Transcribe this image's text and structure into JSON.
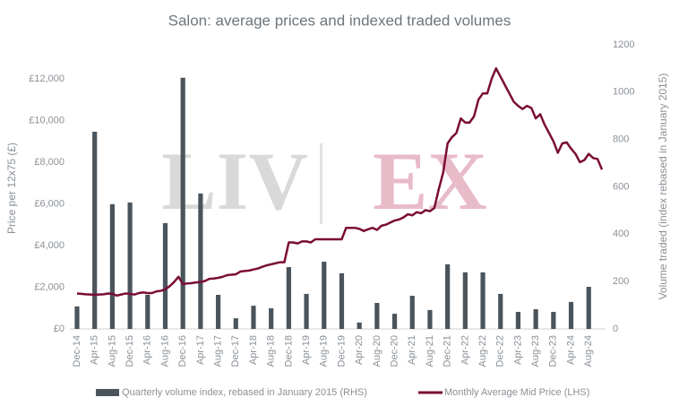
{
  "chart_data": {
    "type": "combo",
    "title": "Salon: average prices and indexed traded volumes",
    "watermark": [
      "LIV",
      "EX"
    ],
    "y_label": "Price per 12x75 (£)",
    "y2_label": "Volume traded (index rebased in January 2015)",
    "categories": [
      "Dec-14",
      null,
      null,
      null,
      "Apr-15",
      null,
      null,
      null,
      "Aug-15",
      null,
      null,
      null,
      "Dec-15",
      null,
      null,
      null,
      "Apr-16",
      null,
      null,
      null,
      "Aug-16",
      null,
      null,
      null,
      "Dec-16",
      null,
      null,
      null,
      "Apr-17",
      null,
      null,
      null,
      "Aug-17",
      null,
      null,
      null,
      "Dec-17",
      null,
      null,
      null,
      "Apr-18",
      null,
      null,
      null,
      "Aug-18",
      null,
      null,
      null,
      "Dec-18",
      null,
      null,
      null,
      "Apr-19",
      null,
      null,
      null,
      "Aug-19",
      null,
      null,
      null,
      "Dec-19",
      null,
      null,
      null,
      "Apr-20",
      null,
      null,
      null,
      "Aug-20",
      null,
      null,
      null,
      "Dec-20",
      null,
      null,
      null,
      "Apr-21",
      null,
      null,
      null,
      "Aug-21",
      null,
      null,
      null,
      "Dec-21",
      null,
      null,
      null,
      "Apr-22",
      null,
      null,
      null,
      "Aug-22",
      null,
      null,
      null,
      "Dec-22",
      null,
      null,
      null,
      "Apr-23",
      null,
      null,
      null,
      "Aug-23",
      null,
      null,
      null,
      "Dec-23",
      null,
      null,
      null,
      "Apr-24",
      null,
      null,
      null,
      "Aug-24",
      null,
      null,
      null
    ],
    "series": [
      {
        "name": "Quarterly volume index, rebased in January 2015 (RHS)",
        "type": "bar",
        "axis": "y2",
        "color": "#4a545c",
        "values": [
          95,
          null,
          null,
          null,
          833,
          null,
          null,
          null,
          527,
          null,
          null,
          null,
          534,
          null,
          null,
          null,
          144,
          null,
          null,
          null,
          447,
          null,
          null,
          null,
          1061,
          null,
          null,
          null,
          572,
          null,
          null,
          null,
          144,
          null,
          null,
          null,
          45,
          null,
          null,
          null,
          98,
          null,
          null,
          null,
          87,
          null,
          null,
          null,
          261,
          null,
          null,
          null,
          148,
          null,
          null,
          null,
          284,
          null,
          null,
          null,
          235,
          null,
          null,
          null,
          27,
          null,
          null,
          null,
          110,
          null,
          null,
          null,
          64,
          null,
          null,
          null,
          140,
          null,
          null,
          null,
          80,
          null,
          null,
          null,
          273,
          null,
          null,
          null,
          239,
          null,
          null,
          null,
          239,
          null,
          null,
          null,
          148,
          null,
          null,
          null,
          72,
          null,
          null,
          null,
          83,
          null,
          null,
          null,
          72,
          null,
          null,
          null,
          114,
          null,
          null,
          null,
          178,
          null,
          null,
          null
        ]
      },
      {
        "name": "Monthly Average Mid Price (LHS)",
        "type": "line",
        "color": "#7a0d35",
        "values": [
          1700,
          1680,
          1660,
          1650,
          1640,
          1650,
          1660,
          1700,
          1690,
          1600,
          1650,
          1700,
          1680,
          1650,
          1720,
          1750,
          1720,
          1720,
          1800,
          1830,
          1900,
          2050,
          2250,
          2500,
          2150,
          2180,
          2200,
          2230,
          2250,
          2300,
          2400,
          2420,
          2450,
          2500,
          2580,
          2600,
          2620,
          2750,
          2780,
          2800,
          2850,
          2900,
          2980,
          3050,
          3100,
          3150,
          3200,
          3200,
          4150,
          4150,
          4100,
          4200,
          4200,
          4150,
          4300,
          4300,
          4300,
          4300,
          4300,
          4300,
          4300,
          4850,
          4850,
          4850,
          4800,
          4700,
          4780,
          4850,
          4750,
          4950,
          5000,
          5100,
          5200,
          5250,
          5350,
          5500,
          5450,
          5600,
          5550,
          5700,
          5650,
          5800,
          6700,
          7500,
          8900,
          9200,
          9400,
          10100,
          9900,
          9900,
          10200,
          11000,
          11300,
          11300,
          12000,
          12500,
          12100,
          11700,
          11300,
          10900,
          10700,
          10550,
          10700,
          10600,
          10100,
          10300,
          9800,
          9400,
          9000,
          8450,
          8900,
          8950,
          8650,
          8400,
          8000,
          8100,
          8400,
          8200,
          8150,
          7650
        ]
      }
    ],
    "ylim": [
      0,
      13630
    ],
    "yticks": [
      {
        "value": 0,
        "label": "£0"
      },
      {
        "value": 2000,
        "label": "£2,000"
      },
      {
        "value": 4000,
        "label": "£4,000"
      },
      {
        "value": 6000,
        "label": "£6,000"
      },
      {
        "value": 8000,
        "label": "£8,000"
      },
      {
        "value": 10000,
        "label": "£10,000"
      },
      {
        "value": 12000,
        "label": "£12,000"
      }
    ],
    "y2lim": [
      0,
      1200
    ],
    "y2ticks": [
      0,
      200,
      400,
      600,
      800,
      1000,
      1200
    ]
  }
}
